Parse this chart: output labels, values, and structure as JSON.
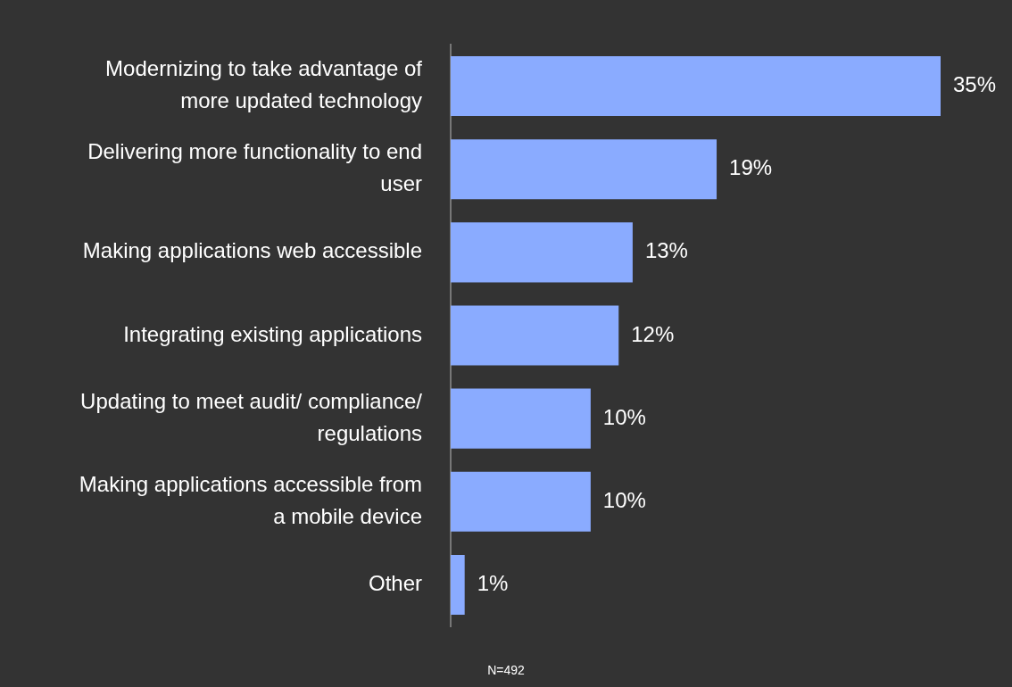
{
  "chart_data": {
    "type": "bar",
    "orientation": "horizontal",
    "categories": [
      "Modernizing to take advantage of more updated technology",
      "Delivering more functionality to end user",
      "Making applications web accessible",
      "Integrating existing applications",
      "Updating to meet audit/ compliance/ regulations",
      "Making applications accessible from a mobile device",
      "Other"
    ],
    "values": [
      35,
      19,
      13,
      12,
      10,
      10,
      1
    ],
    "value_labels": [
      "35%",
      "19%",
      "13%",
      "12%",
      "10%",
      "10%",
      "1%"
    ],
    "color": "#8aabff",
    "tick_labels": "y",
    "annotations": [
      "N=492"
    ]
  }
}
